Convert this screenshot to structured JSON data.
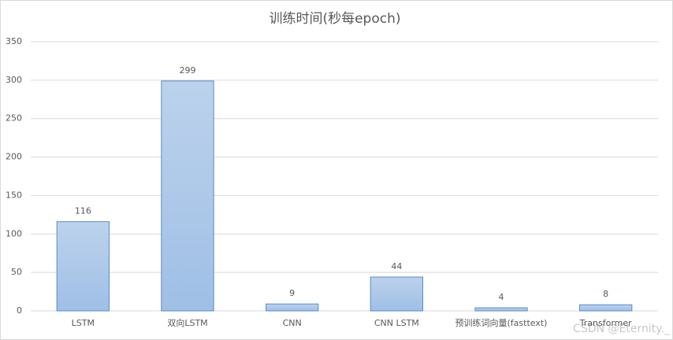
{
  "chart_data": {
    "type": "bar",
    "title": "训练时间(秒每epoch)",
    "categories": [
      "LSTM",
      "双向LSTM",
      "CNN",
      "CNN LSTM",
      "预训练词向量(fasttext)",
      "Transformer"
    ],
    "values": [
      116,
      299,
      9,
      44,
      4,
      8
    ],
    "color": "#9fbfe6",
    "edge_color": "#5b8cc7",
    "ylim": [
      0,
      350
    ],
    "yticks": [
      0,
      50,
      100,
      150,
      200,
      250,
      300,
      350
    ],
    "grid": true,
    "watermark": "CSDN @Eternity._"
  }
}
